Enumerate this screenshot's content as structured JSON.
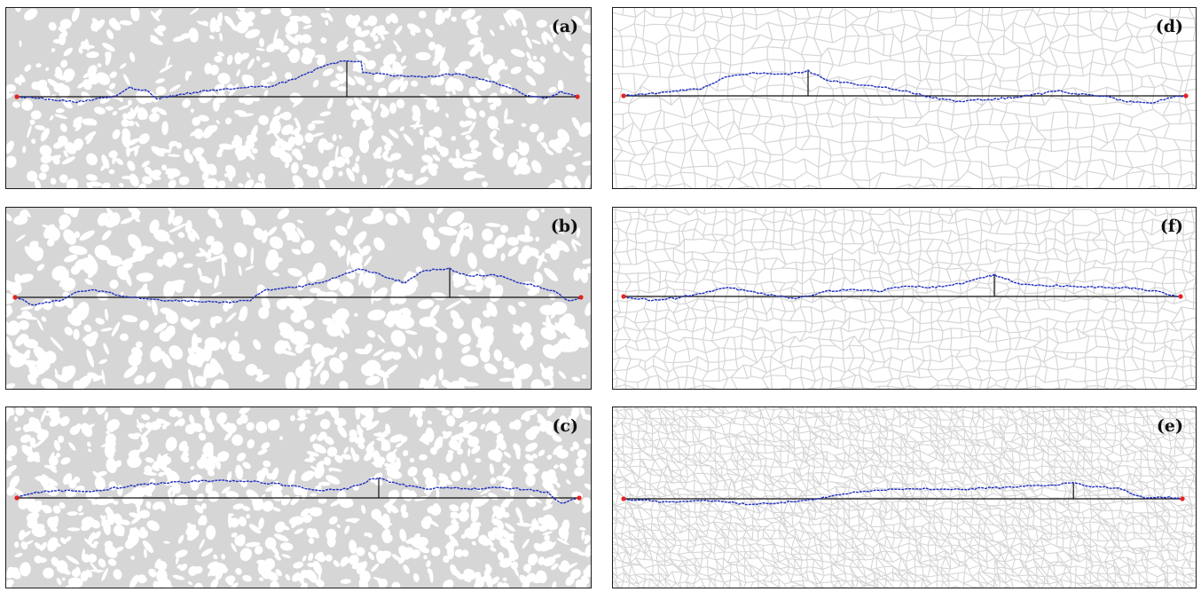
{
  "panels": [
    {
      "id": "a",
      "label": "(a)",
      "texture": "porous"
    },
    {
      "id": "b",
      "label": "(b)",
      "texture": "porous-dense"
    },
    {
      "id": "c",
      "label": "(c)",
      "texture": "porous-fine"
    },
    {
      "id": "d",
      "label": "(d)",
      "texture": "voronoi-coarse"
    },
    {
      "id": "f",
      "label": "(f)",
      "texture": "voronoi-medium"
    },
    {
      "id": "e",
      "label": "(e)",
      "texture": "voronoi-dense"
    }
  ],
  "colors": {
    "background_texture": "#d6d6d6",
    "pores": "#ffffff",
    "path": "#1f2fbf",
    "baseline": "#111111",
    "endpoints": "#e8231f",
    "frame": "#1a1a1a"
  }
}
